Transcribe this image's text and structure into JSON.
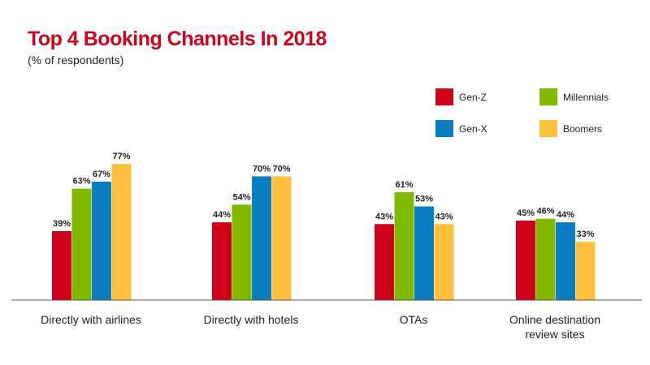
{
  "colors": {
    "title": "#d0021b",
    "gen_z": "#d0021b",
    "millennials": "#7fba00",
    "gen_x": "#0b7dc1",
    "boomers": "#ffc13b"
  },
  "chart_data": {
    "type": "bar",
    "title": "Top 4 Booking Channels In 2018",
    "subtitle": "(% of respondents)",
    "xlabel": "",
    "ylabel": "",
    "ylim": [
      0,
      100
    ],
    "grid": false,
    "legend_position": "top-right",
    "value_suffix": "%",
    "categories": [
      [
        "Directly with airlines"
      ],
      [
        "Directly with hotels"
      ],
      [
        "OTAs"
      ],
      [
        "Online destination",
        "review sites"
      ]
    ],
    "series": [
      {
        "name": "Gen-Z",
        "color": "#d0021b",
        "values": [
          39,
          44,
          43,
          45
        ]
      },
      {
        "name": "Millennials",
        "color": "#7fba00",
        "values": [
          63,
          54,
          61,
          46
        ]
      },
      {
        "name": "Gen-X",
        "color": "#0b7dc1",
        "values": [
          67,
          70,
          53,
          44
        ]
      },
      {
        "name": "Boomers",
        "color": "#ffc13b",
        "values": [
          77,
          70,
          43,
          33
        ]
      }
    ]
  }
}
